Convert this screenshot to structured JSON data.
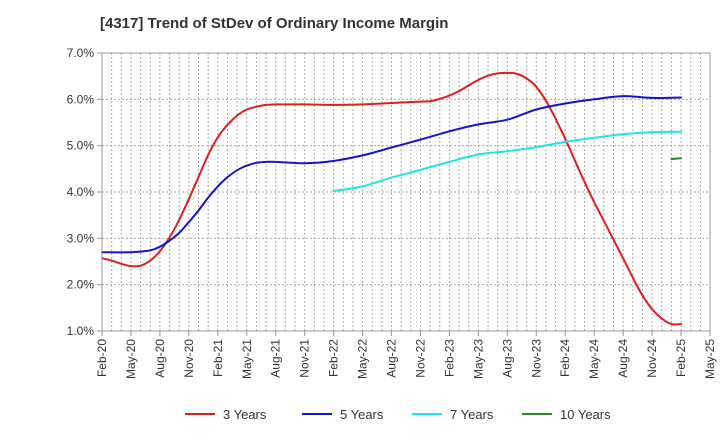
{
  "chart_data": {
    "type": "line",
    "title": "[4317]  Trend of StDev of Ordinary Income Margin",
    "xlabel": "",
    "ylabel": "",
    "x_ticks": [
      "Feb-20",
      "May-20",
      "Aug-20",
      "Nov-20",
      "Feb-21",
      "May-21",
      "Aug-21",
      "Nov-21",
      "Feb-22",
      "May-22",
      "Aug-22",
      "Nov-22",
      "Feb-23",
      "May-23",
      "Aug-23",
      "Nov-23",
      "Feb-24",
      "May-24",
      "Aug-24",
      "Nov-24",
      "Feb-25",
      "May-25"
    ],
    "y_ticks": [
      "1.0%",
      "2.0%",
      "3.0%",
      "4.0%",
      "5.0%",
      "6.0%",
      "7.0%"
    ],
    "ylim": [
      1.0,
      7.0
    ],
    "grid": true,
    "legend_position": "bottom",
    "series": [
      {
        "name": "3 Years",
        "color": "#dd1f1f",
        "x": [
          "Feb-20",
          "Mar-20",
          "Apr-20",
          "May-20",
          "Jun-20",
          "Jul-20",
          "Aug-20",
          "Sep-20",
          "Oct-20",
          "Nov-20",
          "Dec-20",
          "Jan-21",
          "Feb-21",
          "Mar-21",
          "Apr-21",
          "May-21",
          "Jun-21",
          "Jul-21",
          "Aug-21",
          "Nov-21",
          "Feb-22",
          "May-22",
          "Aug-22",
          "Nov-22",
          "Dec-22",
          "Jan-23",
          "Feb-23",
          "Mar-23",
          "Apr-23",
          "May-23",
          "Jun-23",
          "Jul-23",
          "Aug-23",
          "Sep-23",
          "Oct-23",
          "Nov-23",
          "Dec-23",
          "Jan-24",
          "Feb-24",
          "Mar-24",
          "Apr-24",
          "May-24",
          "Jun-24",
          "Jul-24",
          "Aug-24",
          "Sep-24",
          "Oct-24",
          "Nov-24",
          "Dec-24",
          "Jan-25",
          "Feb-25"
        ],
        "values": [
          2.57,
          2.52,
          2.45,
          2.4,
          2.41,
          2.52,
          2.72,
          3.02,
          3.4,
          3.85,
          4.32,
          4.8,
          5.18,
          5.45,
          5.65,
          5.78,
          5.84,
          5.88,
          5.89,
          5.89,
          5.88,
          5.89,
          5.92,
          5.95,
          5.96,
          6.01,
          6.08,
          6.18,
          6.3,
          6.42,
          6.51,
          6.56,
          6.57,
          6.55,
          6.45,
          6.27,
          5.97,
          5.58,
          5.15,
          4.68,
          4.22,
          3.78,
          3.38,
          2.97,
          2.57,
          2.15,
          1.77,
          1.47,
          1.27,
          1.15,
          1.15
        ]
      },
      {
        "name": "5 Years",
        "color": "#1515c8",
        "x": [
          "Feb-20",
          "May-20",
          "Jul-20",
          "Aug-20",
          "Sep-20",
          "Oct-20",
          "Nov-20",
          "Dec-20",
          "Jan-21",
          "Feb-21",
          "Mar-21",
          "Apr-21",
          "May-21",
          "Jun-21",
          "Jul-21",
          "Aug-21",
          "Nov-21",
          "Feb-22",
          "May-22",
          "Aug-22",
          "Nov-22",
          "Feb-23",
          "May-23",
          "Aug-23",
          "Nov-23",
          "Feb-24",
          "May-24",
          "Aug-24",
          "Nov-24",
          "Feb-25"
        ],
        "values": [
          2.7,
          2.7,
          2.74,
          2.82,
          2.95,
          3.12,
          3.35,
          3.6,
          3.88,
          4.12,
          4.32,
          4.47,
          4.57,
          4.63,
          4.65,
          4.65,
          4.62,
          4.67,
          4.79,
          4.96,
          5.13,
          5.31,
          5.46,
          5.56,
          5.78,
          5.91,
          6.0,
          6.07,
          6.03,
          6.04
        ]
      },
      {
        "name": "7 Years",
        "color": "#1fe6e6",
        "x": [
          "Feb-22",
          "May-22",
          "Aug-22",
          "Nov-22",
          "Feb-23",
          "May-23",
          "Aug-23",
          "Nov-23",
          "Feb-24",
          "May-24",
          "Aug-24",
          "Nov-24",
          "Feb-25"
        ],
        "values": [
          4.02,
          4.12,
          4.31,
          4.48,
          4.65,
          4.81,
          4.88,
          4.97,
          5.08,
          5.17,
          5.25,
          5.29,
          5.3
        ]
      },
      {
        "name": "10 Years",
        "color": "#2a8a2a",
        "x": [
          "Jan-25",
          "Feb-25"
        ],
        "values": [
          4.71,
          4.73
        ]
      }
    ]
  }
}
